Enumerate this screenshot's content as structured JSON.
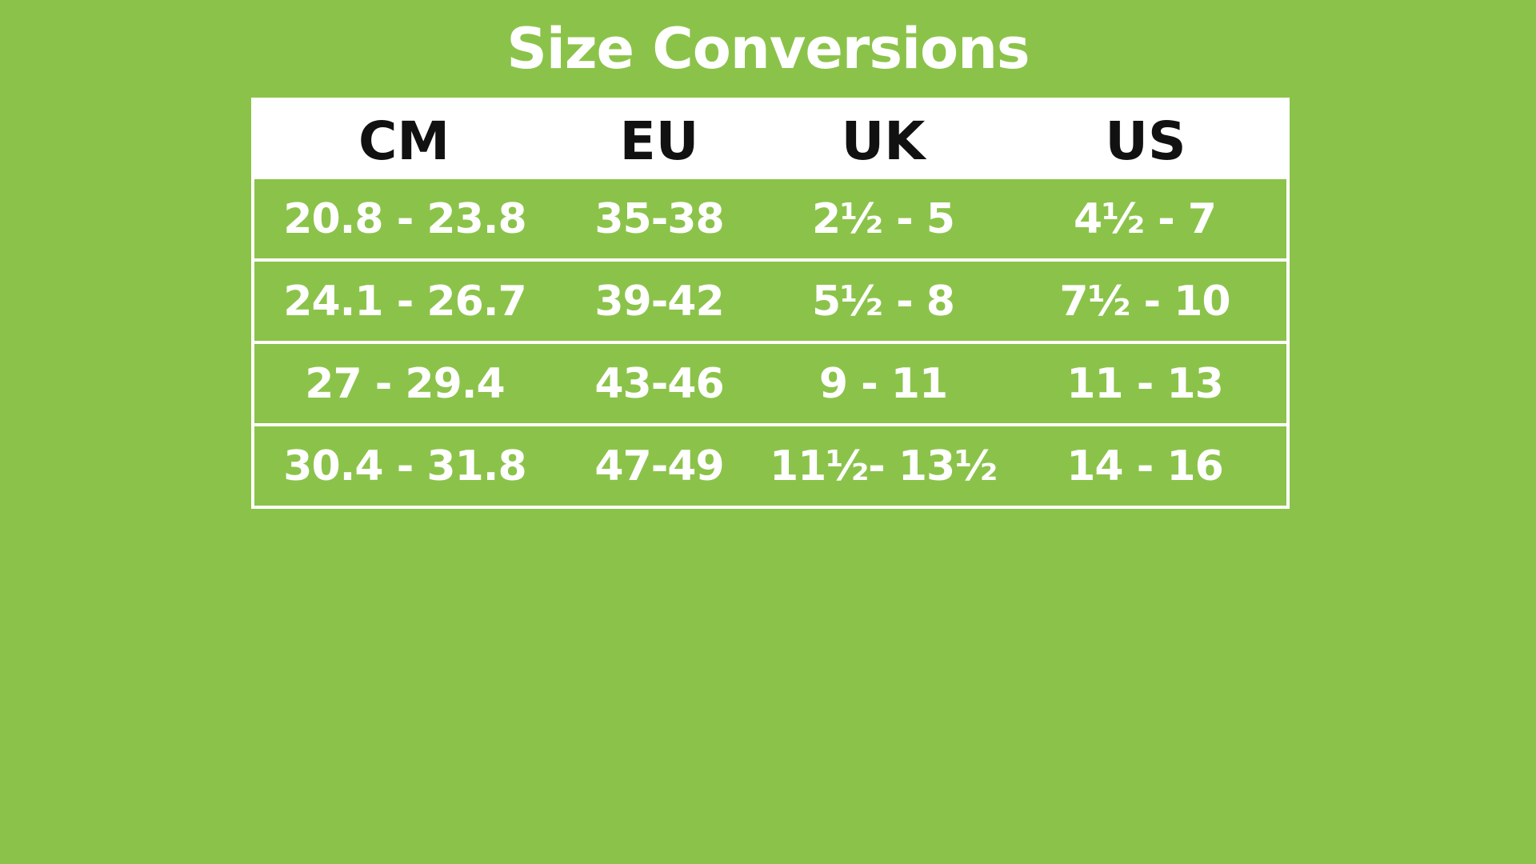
{
  "title": "Size Conversions",
  "colors": {
    "background": "#8bc34a",
    "header_bg": "#ffffff",
    "text": "#ffffff"
  },
  "table": {
    "headers": [
      "CM",
      "EU",
      "UK",
      "US"
    ],
    "rows": [
      [
        "20.8 - 23.8",
        "35-38",
        "2½ - 5",
        "4½ - 7"
      ],
      [
        "24.1 - 26.7",
        "39-42",
        "5½ - 8",
        "7½ - 10"
      ],
      [
        "27 - 29.4",
        "43-46",
        "9 - 11",
        "11 - 13"
      ],
      [
        "30.4 - 31.8",
        "47-49",
        "11½- 13½",
        "14 - 16"
      ]
    ]
  }
}
